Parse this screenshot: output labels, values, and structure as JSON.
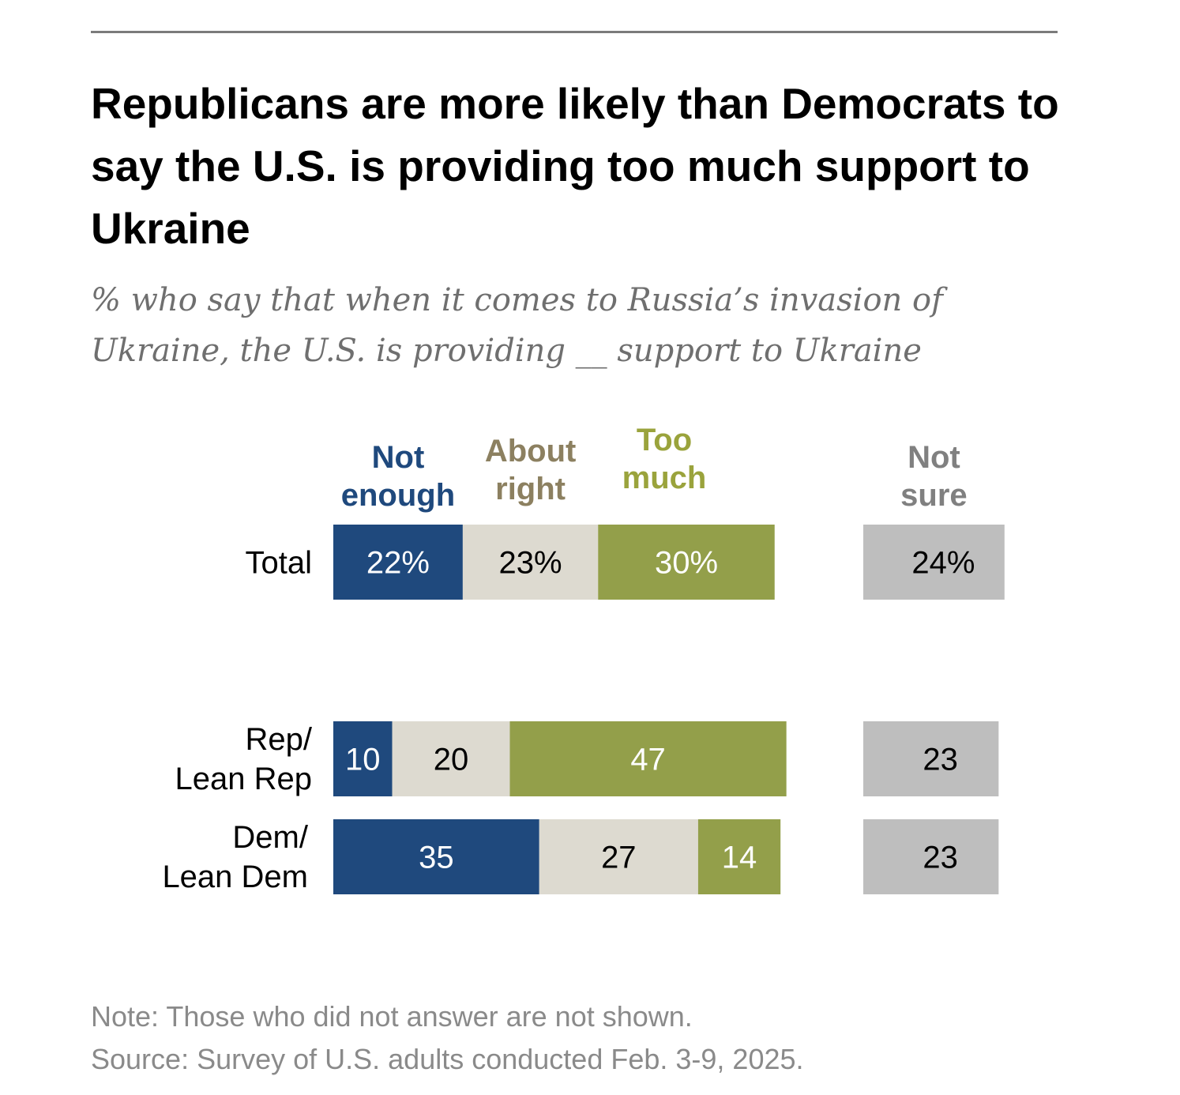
{
  "header": {
    "title": "Republicans are more likely than Democrats to say the U.S. is providing too much support to Ukraine",
    "subtitle": "% who say that when it comes to Russia’s invasion of Ukraine, the U.S. is providing __ support to Ukraine"
  },
  "footer": {
    "note": "Note: Those who did not answer are not shown.",
    "source": "Source: Survey of U.S. adults conducted Feb. 3-9, 2025."
  },
  "chart_data": {
    "type": "bar",
    "orientation": "horizontal-stacked",
    "title": "Republicans are more likely than Democrats to say the U.S. is providing too much support to Ukraine",
    "xlabel": "",
    "ylabel": "",
    "grid": false,
    "categories": [
      "Total",
      "Rep/ Lean Rep",
      "Dem/ Lean Dem"
    ],
    "category_lines": [
      [
        "Total"
      ],
      [
        "Rep/",
        "Lean Rep"
      ],
      [
        "Dem/",
        "Lean Dem"
      ]
    ],
    "series": [
      {
        "name": "Not enough",
        "header_lines": [
          "Not",
          "enough"
        ],
        "color": "#1f497d",
        "label_color": "#1f497d",
        "text_color": "#ffffff",
        "values": [
          22,
          10,
          35
        ],
        "labels": [
          "22%",
          "10",
          "35"
        ]
      },
      {
        "name": "About right",
        "header_lines": [
          "About",
          "right"
        ],
        "color": "#dddad0",
        "label_color": "#8c8060",
        "text_color": "#000000",
        "values": [
          23,
          20,
          27
        ],
        "labels": [
          "23%",
          "20",
          "27"
        ]
      },
      {
        "name": "Too much",
        "header_lines": [
          "Too",
          "much"
        ],
        "color": "#939f4a",
        "label_color": "#9aa33c",
        "text_color": "#ffffff",
        "values": [
          30,
          47,
          14
        ],
        "labels": [
          "30%",
          "47",
          "14"
        ]
      },
      {
        "name": "Not sure",
        "header_lines": [
          "Not",
          "sure"
        ],
        "color": "#bebebe",
        "label_color": "#808080",
        "text_color": "#000000",
        "values": [
          24,
          23,
          23
        ],
        "labels": [
          "24%",
          "23",
          "23"
        ],
        "separate_column": true
      }
    ],
    "xlim": [
      0,
      100
    ]
  }
}
